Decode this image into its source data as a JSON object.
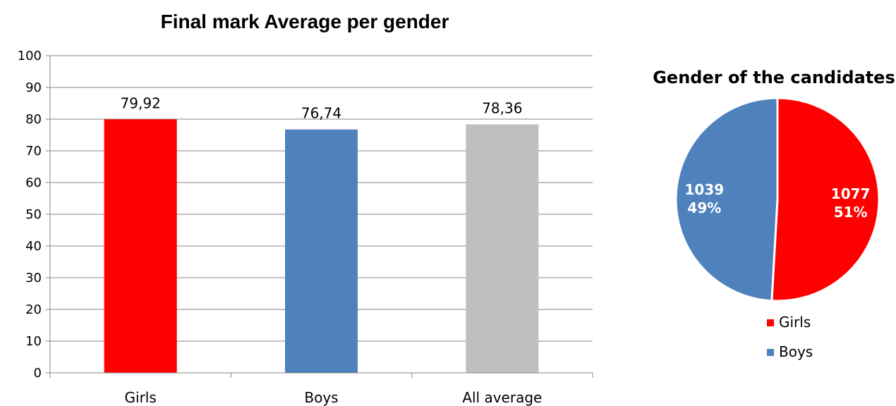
{
  "chart_data": [
    {
      "type": "bar",
      "title": "Final mark Average per gender",
      "categories": [
        "Girls",
        "Boys",
        "All average"
      ],
      "values": [
        79.92,
        76.74,
        78.36
      ],
      "value_labels": [
        "79,92",
        "76,74",
        "78,36"
      ],
      "colors": [
        "#ff0000",
        "#4f81bd",
        "#bfbfbf"
      ],
      "ylim": [
        0,
        100
      ],
      "yticks": [
        "0",
        "10",
        "20",
        "30",
        "40",
        "50",
        "60",
        "70",
        "80",
        "90",
        "100"
      ],
      "grid": true
    },
    {
      "type": "pie",
      "title": "Gender of the candidates",
      "labels": [
        "Girls",
        "Boys"
      ],
      "values": [
        1077,
        1039
      ],
      "percent_labels": [
        "51%",
        "49%"
      ],
      "colors": [
        "#ff0000",
        "#4f81bd"
      ],
      "legend_position": "bottom-right"
    }
  ]
}
